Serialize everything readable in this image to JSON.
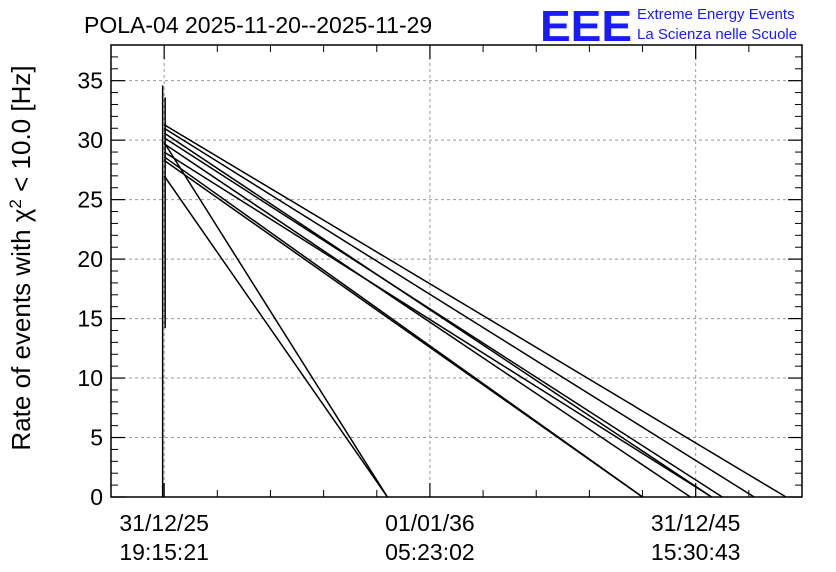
{
  "title": "POLA-04 2025-11-20--2025-11-29",
  "logo": {
    "mark": "EEE",
    "line1": "Extreme Energy Events",
    "line2": "La Scienza nelle Scuole",
    "color": "#1a1aff"
  },
  "chart_data": {
    "type": "line",
    "title": "POLA-04 2025-11-20--2025-11-29",
    "ylabel_prefix": "Rate of events with χ",
    "ylabel_sup": "2",
    "ylabel_suffix": " < 10.0 [Hz]",
    "xlabel": "",
    "ylim": [
      0,
      38
    ],
    "yticks": [
      0,
      5,
      10,
      15,
      20,
      25,
      30,
      35
    ],
    "yminor_step": 1,
    "xlim": [
      -1,
      12
    ],
    "xticks": [
      {
        "x": 0,
        "line1": "31/12/25",
        "line2": "19:15:21"
      },
      {
        "x": 5,
        "line1": "01/01/36",
        "line2": "05:23:02"
      },
      {
        "x": 10,
        "line1": "31/12/45",
        "line2": "15:30:43"
      }
    ],
    "xminor_step": 1,
    "grid": true,
    "line_color": "#000000",
    "vertical_spike": {
      "x": 0,
      "ymin": 14.2,
      "ymax": 34.6
    },
    "series": [
      {
        "x": [
          0,
          11.7
        ],
        "y": [
          31.3,
          0
        ]
      },
      {
        "x": [
          0,
          11.1
        ],
        "y": [
          31.0,
          0
        ]
      },
      {
        "x": [
          0,
          10.3
        ],
        "y": [
          30.6,
          0
        ]
      },
      {
        "x": [
          0,
          10.5
        ],
        "y": [
          30.2,
          0
        ]
      },
      {
        "x": [
          0,
          9.9
        ],
        "y": [
          29.7,
          0
        ]
      },
      {
        "x": [
          0,
          9.0
        ],
        "y": [
          28.6,
          0
        ]
      },
      {
        "x": [
          0,
          10.3
        ],
        "y": [
          29.0,
          0
        ]
      },
      {
        "x": [
          0,
          9.0
        ],
        "y": [
          28.3,
          0
        ]
      },
      {
        "x": [
          0,
          4.2
        ],
        "y": [
          29.8,
          0
        ]
      },
      {
        "x": [
          0,
          4.2
        ],
        "y": [
          27.0,
          0
        ]
      }
    ]
  }
}
